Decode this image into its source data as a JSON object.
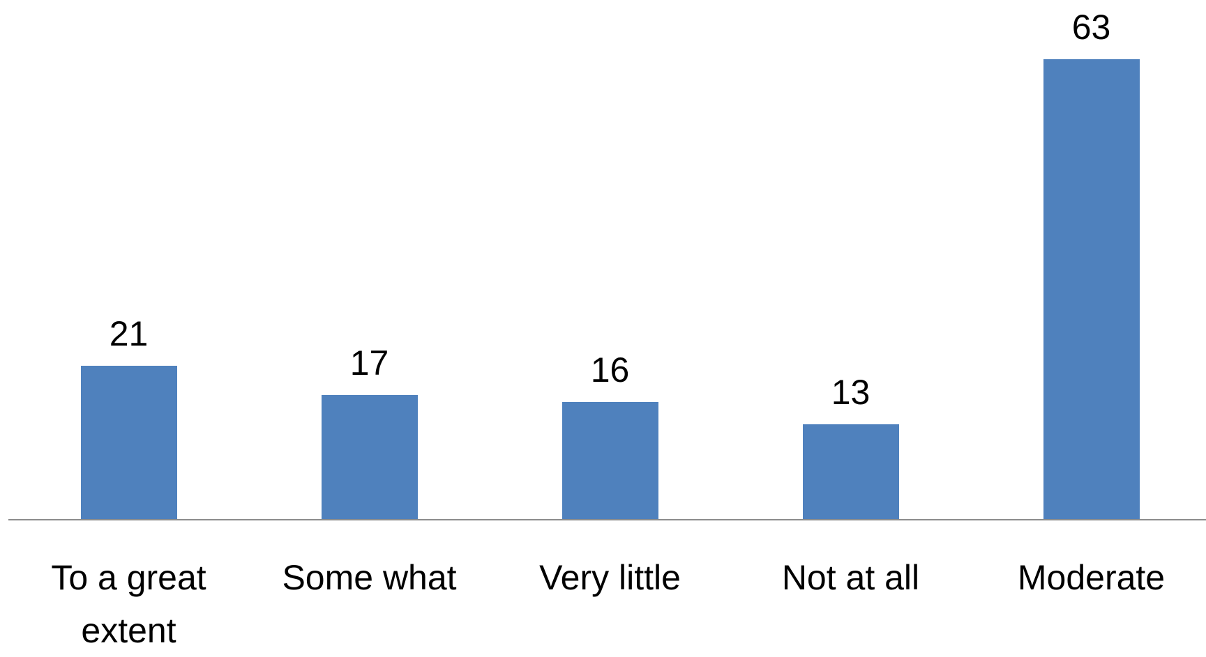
{
  "chart_data": {
    "type": "bar",
    "categories": [
      "To a great extent",
      "Some what",
      "Very little",
      "Not at all",
      "Moderate"
    ],
    "values": [
      21,
      17,
      16,
      13,
      63
    ],
    "color": "#4f81bd"
  }
}
